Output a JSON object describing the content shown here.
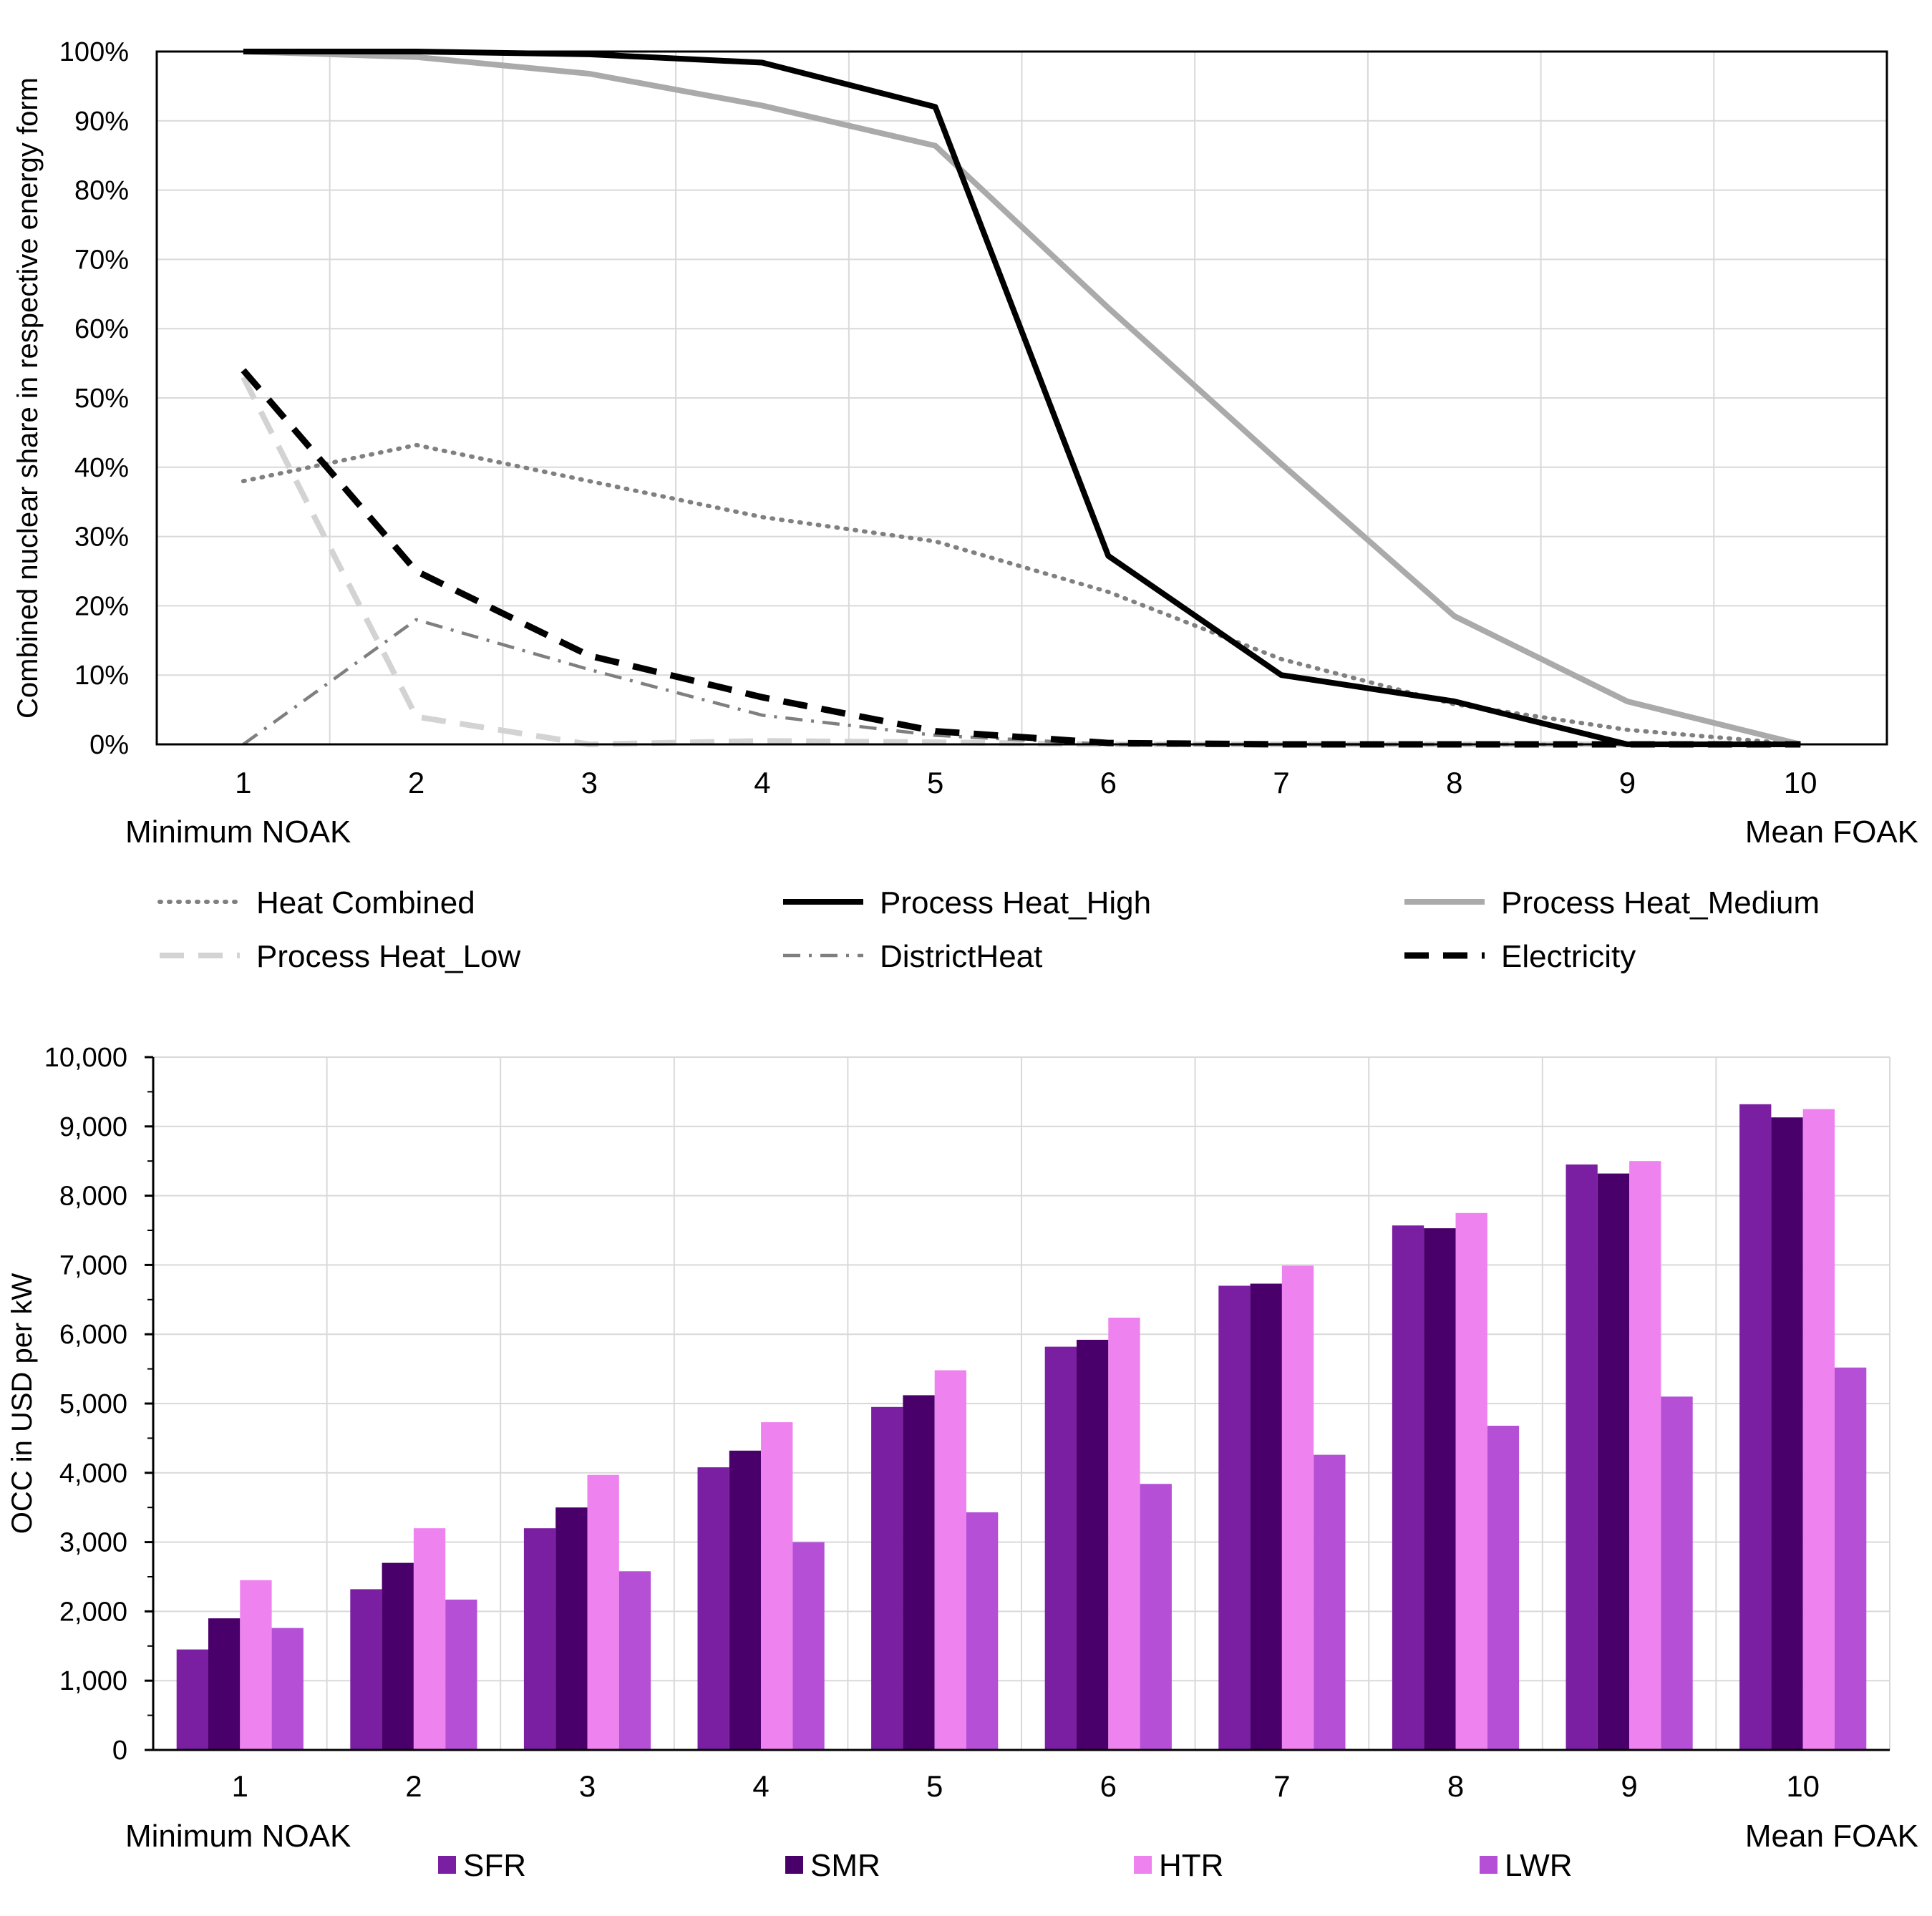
{
  "chart_data": [
    {
      "type": "line",
      "ylabel": "Combined nuclear share in respective energy form",
      "xlabel": "",
      "x": [
        1,
        2,
        3,
        4,
        5,
        6,
        7,
        8,
        9,
        10
      ],
      "x_tick_labels": [
        "1",
        "2",
        "3",
        "4",
        "5",
        "6",
        "7",
        "8",
        "9",
        "10"
      ],
      "x_end_labels": {
        "left": "Minimum NOAK",
        "right": "Mean FOAK"
      },
      "ylim": [
        0,
        100
      ],
      "y_tick_labels": [
        "0%",
        "10%",
        "20%",
        "30%",
        "40%",
        "50%",
        "60%",
        "70%",
        "80%",
        "90%",
        "100%"
      ],
      "grid": true,
      "legend_position": "bottom",
      "series": [
        {
          "name": "Heat Combined",
          "color": "#808080",
          "style": "dotted",
          "values": [
            38,
            43.2,
            38,
            32.8,
            29.3,
            22,
            12.3,
            5.8,
            2.1,
            0
          ]
        },
        {
          "name": "Process Heat_High",
          "color": "#000000",
          "style": "solid",
          "values": [
            100,
            100,
            99.6,
            98.4,
            92,
            27.2,
            10,
            6.2,
            0,
            0
          ]
        },
        {
          "name": "Process Heat_Medium",
          "color": "#aaaaaa",
          "style": "solid",
          "values": [
            100,
            99.2,
            96.8,
            92.2,
            86.4,
            63,
            40.5,
            18.5,
            6.2,
            0
          ]
        },
        {
          "name": "Process Heat_Low",
          "color": "#d3d3d3",
          "style": "dashed",
          "values": [
            53,
            4,
            0,
            0.5,
            0.3,
            0,
            0,
            0,
            0,
            0
          ]
        },
        {
          "name": "DistrictHeat",
          "color": "#7f7f7f",
          "style": "dashdot",
          "values": [
            0,
            18,
            10.8,
            4.2,
            1.3,
            0,
            0,
            0,
            0,
            0
          ]
        },
        {
          "name": "Electricity",
          "color": "#000000",
          "style": "dashed-bold",
          "values": [
            54,
            25,
            12.8,
            6.8,
            1.9,
            0.2,
            0,
            0,
            0,
            0
          ]
        }
      ]
    },
    {
      "type": "bar",
      "ylabel": "OCC in USD per kW",
      "xlabel": "",
      "categories": [
        "1",
        "2",
        "3",
        "4",
        "5",
        "6",
        "7",
        "8",
        "9",
        "10"
      ],
      "x_end_labels": {
        "left": "Minimum NOAK",
        "right": "Mean FOAK"
      },
      "ylim": [
        0,
        10000
      ],
      "y_tick_labels": [
        "0",
        "1,000",
        "2,000",
        "3,000",
        "4,000",
        "5,000",
        "6,000",
        "7,000",
        "8,000",
        "9,000",
        "10,000"
      ],
      "grid": true,
      "legend_position": "bottom",
      "series": [
        {
          "name": "SFR",
          "color": "#7b1fa2",
          "values": [
            1450,
            2320,
            3200,
            4080,
            4950,
            5820,
            6700,
            7570,
            8450,
            9320
          ]
        },
        {
          "name": "SMR",
          "color": "#4a006a",
          "values": [
            1900,
            2700,
            3500,
            4320,
            5120,
            5920,
            6730,
            7530,
            8320,
            9130
          ]
        },
        {
          "name": "HTR",
          "color": "#ee82ee",
          "values": [
            2450,
            3200,
            3970,
            4730,
            5480,
            6240,
            6990,
            7750,
            8500,
            9250
          ]
        },
        {
          "name": "LWR",
          "color": "#b44fd6",
          "values": [
            1760,
            2170,
            2580,
            3000,
            3430,
            3840,
            4260,
            4680,
            5100,
            5520
          ]
        }
      ]
    }
  ]
}
